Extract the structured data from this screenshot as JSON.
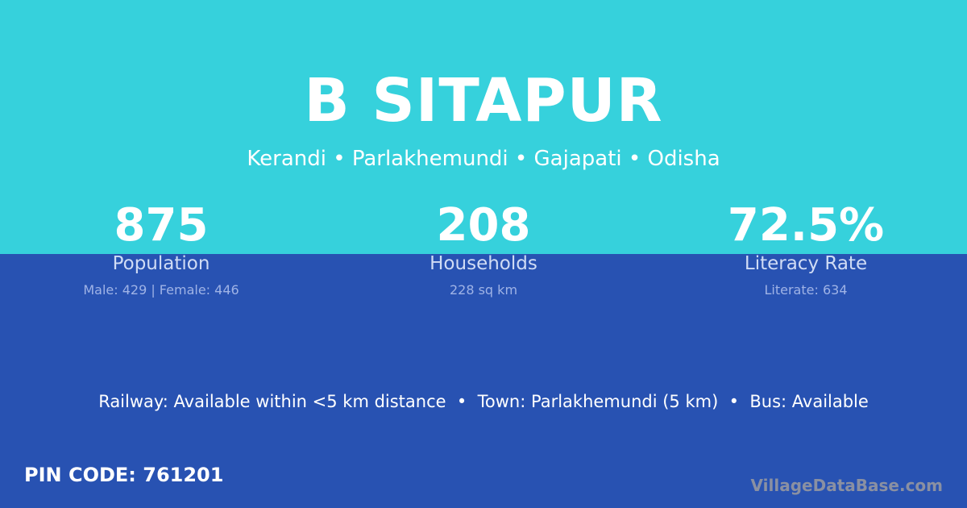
{
  "title": "B SITAPUR",
  "subtitle": "Kerandi • Parlakhemundi • Gajapati • Odisha",
  "stats": [
    {
      "value": "875",
      "label": "Population",
      "detail": "Male: 429 | Female: 446"
    },
    {
      "value": "208",
      "label": "Households",
      "detail": "228 sq km"
    },
    {
      "value": "72.5%",
      "label": "Literacy Rate",
      "detail": "Literate: 634"
    }
  ],
  "info_line": "Railway: Available within <5 km distance  •  Town: Parlakhemundi (5 km)  •  Bus: Available",
  "pin_code": "PIN CODE: 761201",
  "watermark": "VillageDataBase.com",
  "colors": {
    "top": "#36d1dc",
    "bottom": "#2852b2"
  }
}
